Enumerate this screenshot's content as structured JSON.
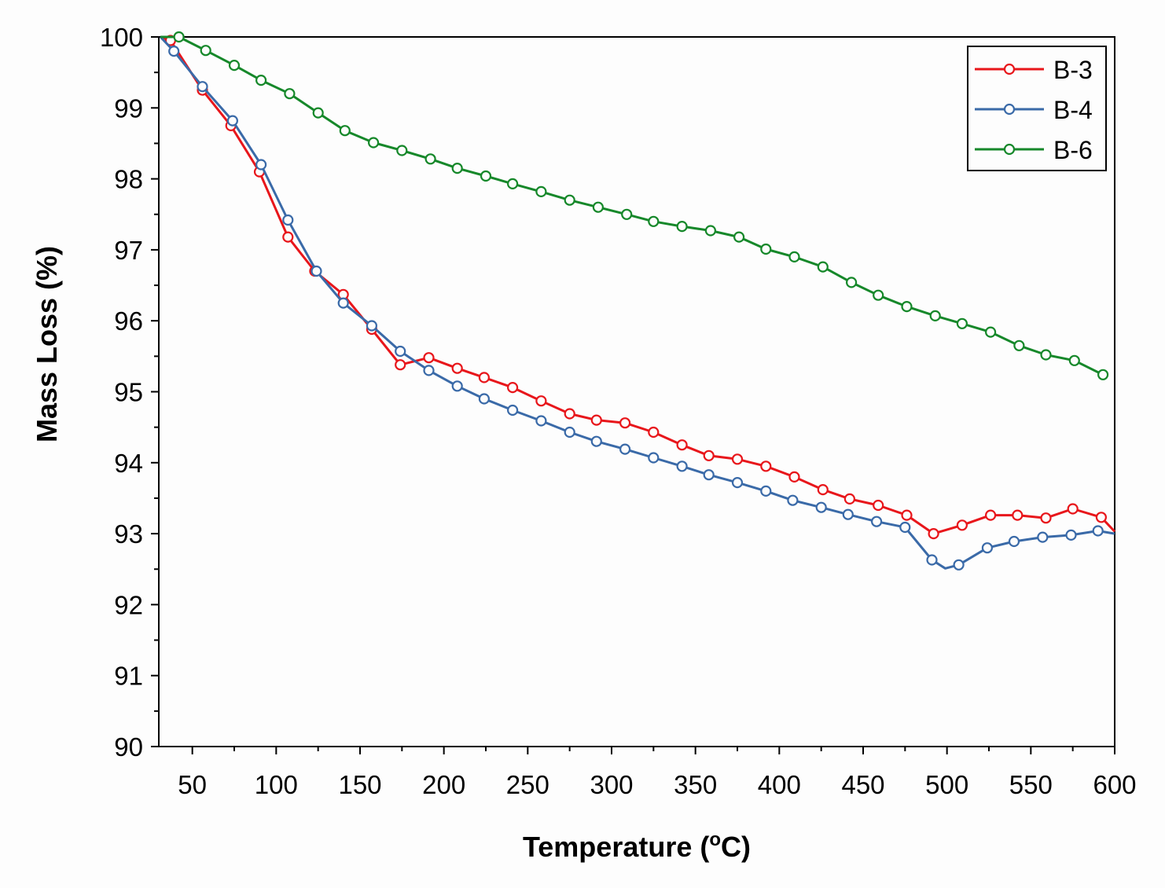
{
  "chart_data": {
    "type": "line",
    "title": "",
    "xlabel_main": "Temperature (",
    "xlabel_sup": "o",
    "xlabel_end": "C)",
    "ylabel": "Mass Loss (%)",
    "xlim": [
      30,
      600
    ],
    "ylim": [
      90,
      100
    ],
    "xticks": [
      50,
      100,
      150,
      200,
      250,
      300,
      350,
      400,
      450,
      500,
      550,
      600
    ],
    "xtick_labels": [
      "50",
      "100",
      "150",
      "200",
      "250",
      "300",
      "350",
      "400",
      "450",
      "500",
      "550",
      "600"
    ],
    "yticks": [
      90,
      91,
      92,
      93,
      94,
      95,
      96,
      97,
      98,
      99,
      100
    ],
    "ytick_labels": [
      "90",
      "91",
      "92",
      "93",
      "94",
      "95",
      "96",
      "97",
      "98",
      "99",
      "100"
    ],
    "legend_position": "top-right",
    "series": [
      {
        "name": "B-3",
        "color": "#e8161b",
        "x": [
          31,
          37,
          56,
          73,
          90,
          107,
          123,
          140,
          157,
          174,
          191,
          208,
          224,
          241,
          258,
          275,
          291,
          308,
          325,
          342,
          358,
          375,
          392,
          409,
          426,
          442,
          459,
          476,
          492,
          509,
          526,
          542,
          559,
          575,
          592,
          600
        ],
        "y": [
          100.0,
          99.95,
          99.25,
          98.75,
          98.1,
          97.18,
          96.7,
          96.37,
          95.88,
          95.38,
          95.48,
          95.33,
          95.2,
          95.06,
          94.87,
          94.69,
          94.6,
          94.56,
          94.43,
          94.25,
          94.1,
          94.05,
          93.95,
          93.8,
          93.62,
          93.49,
          93.4,
          93.26,
          93.0,
          93.12,
          93.26,
          93.26,
          93.22,
          93.35,
          93.23,
          93.03
        ],
        "markers": [
          false,
          true,
          true,
          true,
          true,
          true,
          true,
          true,
          true,
          true,
          true,
          true,
          true,
          true,
          true,
          true,
          true,
          true,
          true,
          true,
          true,
          true,
          true,
          true,
          true,
          true,
          true,
          true,
          true,
          true,
          true,
          true,
          true,
          true,
          true,
          false
        ]
      },
      {
        "name": "B-4",
        "color": "#3a6aa8",
        "x": [
          31,
          39,
          56,
          74,
          91,
          107,
          124,
          140,
          157,
          174,
          191,
          208,
          224,
          241,
          258,
          275,
          291,
          308,
          325,
          342,
          358,
          375,
          392,
          408,
          425,
          441,
          458,
          475,
          491,
          499,
          507,
          524,
          540,
          557,
          574,
          590,
          600
        ],
        "y": [
          100.0,
          99.8,
          99.3,
          98.82,
          98.2,
          97.42,
          96.7,
          96.25,
          95.93,
          95.57,
          95.3,
          95.08,
          94.9,
          94.74,
          94.59,
          94.43,
          94.3,
          94.19,
          94.07,
          93.95,
          93.83,
          93.72,
          93.6,
          93.47,
          93.37,
          93.27,
          93.17,
          93.09,
          92.63,
          92.51,
          92.56,
          92.8,
          92.89,
          92.95,
          92.98,
          93.04,
          93.0
        ],
        "markers": [
          false,
          true,
          true,
          true,
          true,
          true,
          true,
          true,
          true,
          true,
          true,
          true,
          true,
          true,
          true,
          true,
          true,
          true,
          true,
          true,
          true,
          true,
          true,
          true,
          true,
          true,
          true,
          true,
          true,
          false,
          true,
          true,
          true,
          true,
          true,
          true,
          false
        ]
      },
      {
        "name": "B-6",
        "color": "#16882a",
        "x": [
          31,
          42,
          58,
          75,
          91,
          108,
          125,
          141,
          158,
          175,
          192,
          208,
          225,
          241,
          258,
          275,
          292,
          309,
          325,
          342,
          359,
          376,
          392,
          409,
          426,
          443,
          459,
          476,
          493,
          509,
          526,
          543,
          559,
          576,
          593
        ],
        "y": [
          100.0,
          100.0,
          99.81,
          99.6,
          99.39,
          99.2,
          98.93,
          98.68,
          98.51,
          98.4,
          98.28,
          98.15,
          98.04,
          97.93,
          97.82,
          97.7,
          97.6,
          97.5,
          97.4,
          97.33,
          97.27,
          97.18,
          97.01,
          96.9,
          96.76,
          96.54,
          96.36,
          96.2,
          96.07,
          95.96,
          95.84,
          95.65,
          95.52,
          95.44,
          95.24
        ],
        "markers": [
          false,
          true,
          true,
          true,
          true,
          true,
          true,
          true,
          true,
          true,
          true,
          true,
          true,
          true,
          true,
          true,
          true,
          true,
          true,
          true,
          true,
          true,
          true,
          true,
          true,
          true,
          true,
          true,
          true,
          true,
          true,
          true,
          true,
          true,
          true
        ]
      }
    ]
  }
}
